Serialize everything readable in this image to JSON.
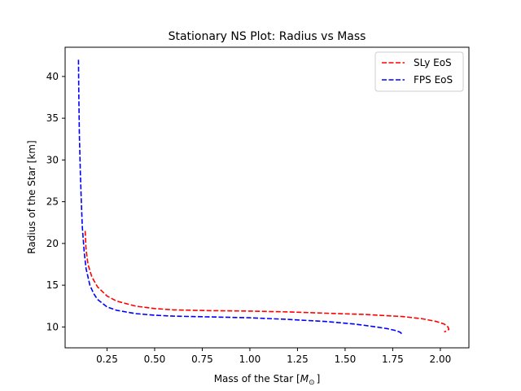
{
  "chart_data": {
    "type": "line",
    "title": "Stationary NS Plot: Radius vs Mass",
    "xlabel": "Mass of the Star [",
    "xlabel_symbol": "M",
    "xlabel_subscript": "⊙",
    "xlabel_suffix": "]",
    "ylabel": "Radius of the Star [km]",
    "xlim": [
      0.03,
      2.15
    ],
    "ylim": [
      7.5,
      43.5
    ],
    "xticks": [
      0.25,
      0.5,
      0.75,
      1.0,
      1.25,
      1.5,
      1.75,
      2.0
    ],
    "xtick_labels": [
      "0.25",
      "0.50",
      "0.75",
      "1.00",
      "1.25",
      "1.50",
      "1.75",
      "2.00"
    ],
    "yticks": [
      10,
      15,
      20,
      25,
      30,
      35,
      40
    ],
    "ytick_labels": [
      "10",
      "15",
      "20",
      "25",
      "30",
      "35",
      "40"
    ],
    "grid": false,
    "legend_position": "top-right",
    "series": [
      {
        "name": "SLy EoS",
        "color": "#ff0000",
        "style": "dashed",
        "x": [
          0.135,
          0.14,
          0.15,
          0.17,
          0.2,
          0.25,
          0.3,
          0.4,
          0.5,
          0.6,
          0.8,
          1.0,
          1.2,
          1.4,
          1.6,
          1.8,
          1.9,
          1.98,
          2.02,
          2.04,
          2.045,
          2.03,
          2.02
        ],
        "y": [
          21.5,
          19.3,
          17.5,
          16.0,
          14.8,
          13.7,
          13.1,
          12.5,
          12.2,
          12.05,
          11.95,
          11.9,
          11.8,
          11.65,
          11.5,
          11.25,
          11.0,
          10.65,
          10.35,
          10.0,
          9.7,
          9.5,
          9.4
        ]
      },
      {
        "name": "FPS EoS",
        "color": "#0000ff",
        "style": "dashed",
        "x": [
          0.1,
          0.102,
          0.105,
          0.11,
          0.115,
          0.12,
          0.13,
          0.14,
          0.16,
          0.18,
          0.2,
          0.25,
          0.3,
          0.4,
          0.5,
          0.6,
          0.8,
          1.0,
          1.2,
          1.4,
          1.55,
          1.65,
          1.72,
          1.76,
          1.78,
          1.79,
          1.795,
          1.79
        ],
        "y": [
          42.0,
          38.0,
          33.0,
          28.5,
          25.0,
          22.0,
          19.0,
          17.0,
          15.0,
          14.0,
          13.3,
          12.4,
          12.0,
          11.6,
          11.4,
          11.3,
          11.2,
          11.1,
          10.9,
          10.65,
          10.35,
          10.05,
          9.8,
          9.6,
          9.45,
          9.35,
          9.25,
          9.15
        ]
      }
    ]
  }
}
